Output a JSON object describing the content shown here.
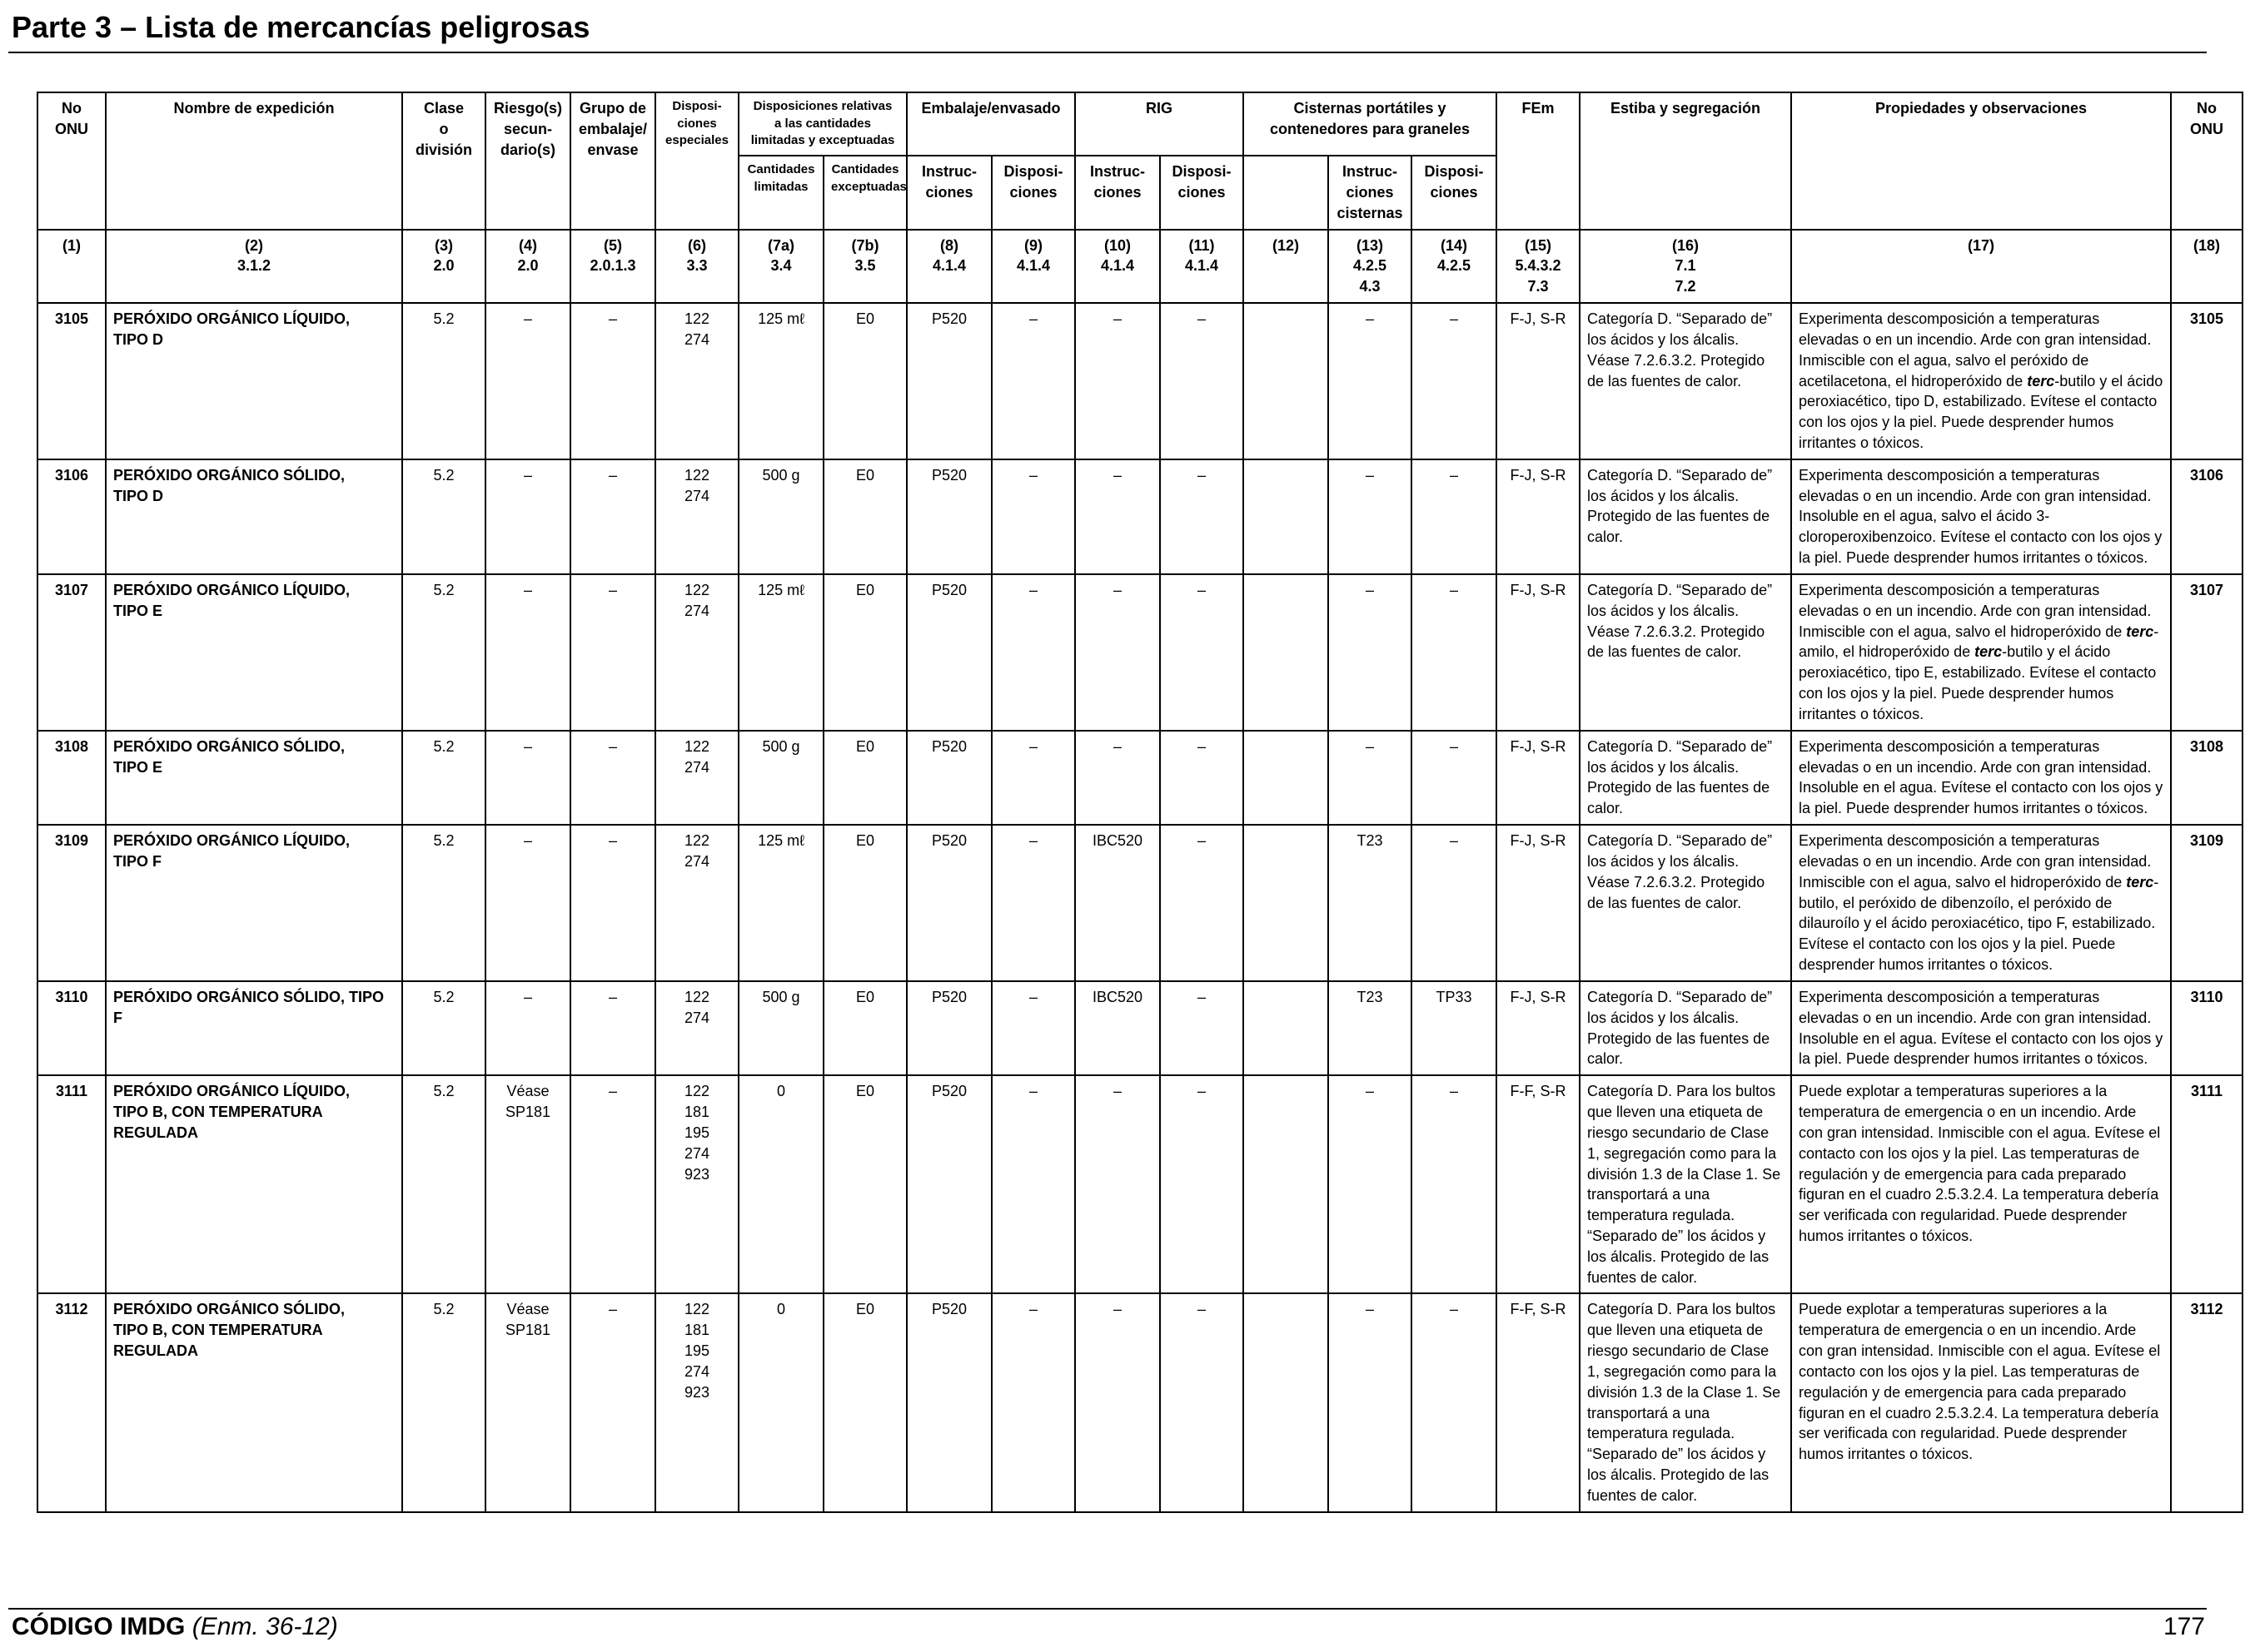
{
  "header": {
    "title": "Parte 3 – Lista de mercancías peligrosas"
  },
  "table": {
    "headers": {
      "no_onu": "No\nONU",
      "nombre": "Nombre de expedición",
      "clase": "Clase\no\ndivisión",
      "riesgo": "Riesgo(s)\nsecun-\ndario(s)",
      "grupo": "Grupo de\nembalaje/\nenvase",
      "disp_esp": "Disposi-\nciones\nespeciales",
      "disp_cant": "Disposiciones relativas\na las cantidades\nlimitadas y exceptuadas",
      "embalaje": "Embalaje/envasado",
      "rig": "RIG",
      "cisternas": "Cisternas portátiles y\ncontenedores para graneles",
      "fem": "FEm",
      "estiba": "Estiba y segregación",
      "propiedades": "Propiedades y observaciones",
      "no_onu_right": "No\nONU",
      "cant_limitadas": "Cantidades\nlimitadas",
      "cant_exceptuadas": "Cantidades\nexceptuadas",
      "emb_instr": "Instruc-\nciones",
      "emb_disp": "Disposi-\nciones",
      "rig_instr": "Instruc-\nciones",
      "rig_disp": "Disposi-\nciones",
      "cist_instr": "Instruc-\nciones\ncisternas",
      "cist_disp": "Disposi-\nciones"
    },
    "column_numbers": [
      "(1)",
      "(2)\n3.1.2",
      "(3)\n2.0",
      "(4)\n2.0",
      "(5)\n2.0.1.3",
      "(6)\n3.3",
      "(7a)\n3.4",
      "(7b)\n3.5",
      "(8)\n4.1.4",
      "(9)\n4.1.4",
      "(10)\n4.1.4",
      "(11)\n4.1.4",
      "(12)",
      "(13)\n4.2.5\n4.3",
      "(14)\n4.2.5",
      "(15)\n5.4.3.2\n7.3",
      "(16)\n7.1\n7.2",
      "(17)",
      "(18)"
    ],
    "rows": [
      {
        "un": "3105",
        "name": "PERÓXIDO ORGÁNICO LÍQUIDO,\nTIPO D",
        "class": "5.2",
        "sub_risk": "–",
        "pg": "–",
        "sp": "122\n274",
        "lq": "125 mℓ",
        "eq": "E0",
        "pack_instr": "P520",
        "pack_prov": "–",
        "ibc_instr": "–",
        "ibc_prov": "–",
        "col12": "",
        "tank_instr": "–",
        "tank_prov": "–",
        "ems": "F-J, S-R",
        "stowage": "Categoría D. “Separado de” los ácidos y los álcalis. Véase 7.2.6.3.2. Protegido de las fuentes de calor.",
        "props_a": "Experimenta descomposición a temperaturas elevadas o en un incendio. Arde con gran intensidad. Inmiscible con el agua, salvo el peróxido de acetilacetona, el hidroperóxido de ",
        "props_em": "terc",
        "props_b": "-butilo y el ácido peroxiacético, tipo D, estabilizado. Evítese el contacto con los ojos y la piel. Puede desprender humos irritantes o tóxicos.",
        "un_right": "3105"
      },
      {
        "un": "3106",
        "name": "PERÓXIDO ORGÁNICO SÓLIDO,\nTIPO D",
        "class": "5.2",
        "sub_risk": "–",
        "pg": "–",
        "sp": "122\n274",
        "lq": "500 g",
        "eq": "E0",
        "pack_instr": "P520",
        "pack_prov": "–",
        "ibc_instr": "–",
        "ibc_prov": "–",
        "col12": "",
        "tank_instr": "–",
        "tank_prov": "–",
        "ems": "F-J, S-R",
        "stowage": "Categoría D. “Separado de” los ácidos y los álcalis. Protegido de las fuentes de calor.",
        "props": "Experimenta descomposición a temperaturas elevadas o en un incendio. Arde con gran intensidad. Insoluble en el agua, salvo el ácido 3-cloroperoxibenzoico. Evítese el contacto con los ojos y la piel. Puede desprender humos irritantes o tóxicos.",
        "un_right": "3106"
      },
      {
        "un": "3107",
        "name": "PERÓXIDO ORGÁNICO LÍQUIDO,\nTIPO E",
        "class": "5.2",
        "sub_risk": "–",
        "pg": "–",
        "sp": "122\n274",
        "lq": "125 mℓ",
        "eq": "E0",
        "pack_instr": "P520",
        "pack_prov": "–",
        "ibc_instr": "–",
        "ibc_prov": "–",
        "col12": "",
        "tank_instr": "–",
        "tank_prov": "–",
        "ems": "F-J, S-R",
        "stowage": "Categoría D. “Separado de” los ácidos y los álcalis. Véase 7.2.6.3.2. Protegido de las fuentes de calor.",
        "props_a": "Experimenta descomposición a temperaturas elevadas o en un incendio. Arde con gran intensidad. Inmiscible con el agua, salvo el hidroperóxido de ",
        "props_em": "terc",
        "props_b": "-amilo, el hidroperóxido de ",
        "props_em2": "terc",
        "props_c": "-butilo y el ácido peroxiacético, tipo E, estabilizado. Evítese el contacto con los ojos y la piel. Puede desprender humos irritantes o tóxicos.",
        "un_right": "3107"
      },
      {
        "un": "3108",
        "name": "PERÓXIDO ORGÁNICO SÓLIDO,\nTIPO E",
        "class": "5.2",
        "sub_risk": "–",
        "pg": "–",
        "sp": "122\n274",
        "lq": "500 g",
        "eq": "E0",
        "pack_instr": "P520",
        "pack_prov": "–",
        "ibc_instr": "–",
        "ibc_prov": "–",
        "col12": "",
        "tank_instr": "–",
        "tank_prov": "–",
        "ems": "F-J, S-R",
        "stowage": "Categoría D. “Separado de” los ácidos y los álcalis. Protegido de las fuentes de calor.",
        "props": "Experimenta descomposición a temperaturas elevadas o en un incendio. Arde con gran intensidad. Insoluble en el agua. Evítese el contacto con los ojos y la piel. Puede desprender humos irritantes o tóxicos.",
        "un_right": "3108"
      },
      {
        "un": "3109",
        "name": "PERÓXIDO ORGÁNICO LÍQUIDO,\nTIPO F",
        "class": "5.2",
        "sub_risk": "–",
        "pg": "–",
        "sp": "122\n274",
        "lq": "125 mℓ",
        "eq": "E0",
        "pack_instr": "P520",
        "pack_prov": "–",
        "ibc_instr": "IBC520",
        "ibc_prov": "–",
        "col12": "",
        "tank_instr": "T23",
        "tank_prov": "–",
        "ems": "F-J, S-R",
        "stowage": "Categoría D. “Separado de” los ácidos y los álcalis. Véase 7.2.6.3.2. Protegido de las fuentes de calor.",
        "props_a": "Experimenta descomposición a temperaturas elevadas o en un incendio. Arde con gran intensidad. Inmiscible con el agua, salvo el hidroperóxido de ",
        "props_em": "terc",
        "props_b": "-butilo, el peróxido de dibenzoílo, el peróxido de dilauroílo y el ácido peroxiacético, tipo F, estabilizado.\nEvítese el contacto con los ojos y la piel. Puede desprender humos irritantes o tóxicos.",
        "un_right": "3109"
      },
      {
        "un": "3110",
        "name": "PERÓXIDO ORGÁNICO SÓLIDO, TIPO F",
        "class": "5.2",
        "sub_risk": "–",
        "pg": "–",
        "sp": "122\n274",
        "lq": "500 g",
        "eq": "E0",
        "pack_instr": "P520",
        "pack_prov": "–",
        "ibc_instr": "IBC520",
        "ibc_prov": "–",
        "col12": "",
        "tank_instr": "T23",
        "tank_prov": "TP33",
        "ems": "F-J, S-R",
        "stowage": "Categoría D. “Separado de” los ácidos y los álcalis. Protegido de las fuentes de calor.",
        "props": "Experimenta descomposición a temperaturas elevadas o en un incendio. Arde con gran intensidad. Insoluble en el agua. Evítese el contacto con los ojos y la piel. Puede desprender humos irritantes o tóxicos.",
        "un_right": "3110"
      },
      {
        "un": "3111",
        "name": "PERÓXIDO ORGÁNICO LÍQUIDO,\nTIPO B, CON TEMPERATURA\nREGULADA",
        "class": "5.2",
        "sub_risk": "Véase\nSP181",
        "pg": "–",
        "sp": "122\n181\n195\n274\n923",
        "lq": "0",
        "eq": "E0",
        "pack_instr": "P520",
        "pack_prov": "–",
        "ibc_instr": "–",
        "ibc_prov": "–",
        "col12": "",
        "tank_instr": "–",
        "tank_prov": "–",
        "ems": "F-F, S-R",
        "stowage": "Categoría D. Para los bultos que lleven una etiqueta de riesgo secundario de Clase 1, segregación como para la división 1.3 de la Clase 1. Se transportará a una temperatura regulada. “Separado de” los ácidos y los álcalis. Protegido de las fuentes de calor.",
        "props": "Puede explotar a temperaturas superiores a la temperatura de emergencia o en un incendio. Arde con gran intensidad. Inmiscible con el agua. Evítese el contacto con los ojos y la piel. Las temperaturas de regulación y de emergencia para cada preparado figuran en el cuadro 2.5.3.2.4. La temperatura debería ser verificada con regularidad. Puede desprender humos irritantes o tóxicos.",
        "un_right": "3111"
      },
      {
        "un": "3112",
        "name": "PERÓXIDO ORGÁNICO SÓLIDO,\nTIPO B, CON TEMPERATURA\nREGULADA",
        "class": "5.2",
        "sub_risk": "Véase\nSP181",
        "pg": "–",
        "sp": "122\n181\n195\n274\n923",
        "lq": "0",
        "eq": "E0",
        "pack_instr": "P520",
        "pack_prov": "–",
        "ibc_instr": "–",
        "ibc_prov": "–",
        "col12": "",
        "tank_instr": "–",
        "tank_prov": "–",
        "ems": "F-F, S-R",
        "stowage": "Categoría D. Para los bultos que lleven una etiqueta de riesgo secundario de Clase 1, segregación como para la división 1.3 de la Clase 1. Se transportará a una temperatura regulada. “Separado de” los ácidos y los álcalis. Protegido de las fuentes de calor.",
        "props": "Puede explotar a temperaturas superiores a la temperatura de emergencia o en un incendio. Arde con gran intensidad. Inmiscible con el agua. Evítese el contacto con los ojos y la piel. Las temperaturas de regulación y de emergencia para cada preparado figuran en el cuadro 2.5.3.2.4. La temperatura debería ser verificada con regularidad. Puede desprender humos irritantes o tóxicos.",
        "un_right": "3112"
      }
    ]
  },
  "footer": {
    "code": "CÓDIGO IMDG",
    "amendment": "(Enm. 36-12)",
    "page_number": "177"
  }
}
